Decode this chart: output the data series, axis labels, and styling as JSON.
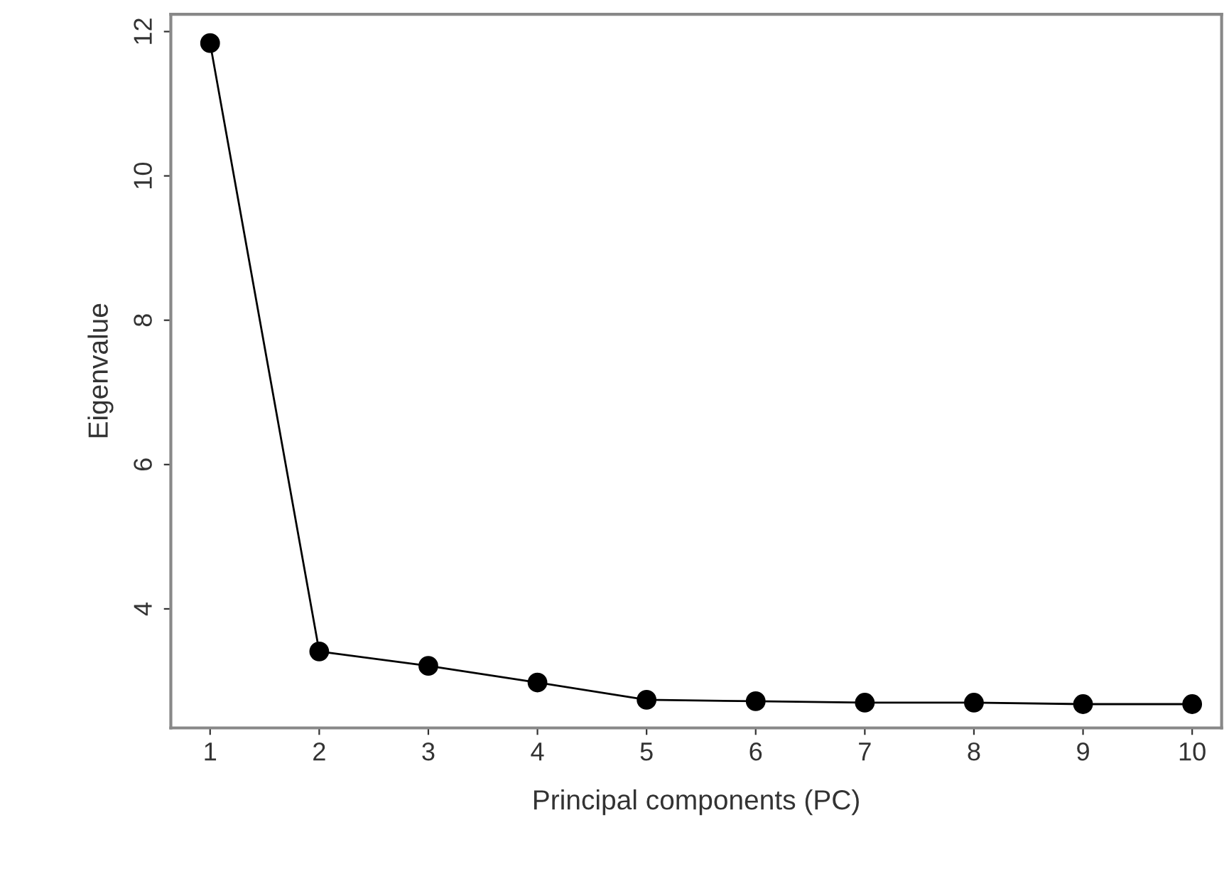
{
  "chart_data": {
    "type": "line",
    "xlabel": "Principal components (PC)",
    "ylabel": "Eigenvalue",
    "x": [
      1,
      2,
      3,
      4,
      5,
      6,
      7,
      8,
      9,
      10
    ],
    "series": [
      {
        "color": "#000000",
        "values": [
          11.84,
          3.41,
          3.21,
          2.98,
          2.74,
          2.72,
          2.7,
          2.7,
          2.68,
          2.68
        ]
      }
    ],
    "xlim": [
      0.64,
      10.27
    ],
    "ylim": [
      2.35,
      12.24
    ],
    "xticks": [
      1,
      2,
      3,
      4,
      5,
      6,
      7,
      8,
      9,
      10
    ],
    "yticks": [
      4,
      6,
      8,
      10,
      12
    ],
    "marker": "circle",
    "line_style": "solid",
    "grid": false,
    "legend": false
  }
}
